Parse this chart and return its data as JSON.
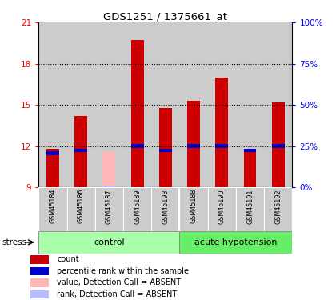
{
  "title": "GDS1251 / 1375661_at",
  "samples": [
    "GSM45184",
    "GSM45186",
    "GSM45187",
    "GSM45189",
    "GSM45193",
    "GSM45188",
    "GSM45190",
    "GSM45191",
    "GSM45192"
  ],
  "red_values": [
    11.8,
    14.2,
    9.0,
    19.7,
    14.8,
    15.3,
    17.0,
    11.6,
    15.2
  ],
  "blue_values": [
    11.5,
    11.7,
    9.0,
    12.0,
    11.7,
    12.0,
    12.0,
    11.7,
    12.0
  ],
  "absent_idx": 2,
  "pink_value": 11.6,
  "lavender_value": 11.5,
  "ymin": 9,
  "ymax": 21,
  "yticks": [
    9,
    12,
    15,
    18,
    21
  ],
  "right_ytick_labels": [
    "0%",
    "25%",
    "50%",
    "75%",
    "100%"
  ],
  "right_ytick_vals": [
    9,
    12,
    15,
    18,
    21
  ],
  "dotted_lines": [
    12,
    15,
    18
  ],
  "n_control": 5,
  "n_acute": 4,
  "group_label_control": "control",
  "group_label_acute": "acute hypotension",
  "stress_label": "stress",
  "legend_items": [
    {
      "color": "#cc0000",
      "label": "count"
    },
    {
      "color": "#0000cc",
      "label": "percentile rank within the sample"
    },
    {
      "color": "#ffb6b6",
      "label": "value, Detection Call = ABSENT"
    },
    {
      "color": "#bbbbff",
      "label": "rank, Detection Call = ABSENT"
    }
  ],
  "bar_color_red": "#cc0000",
  "bar_color_blue": "#0000cc",
  "bar_color_pink": "#ffb6b6",
  "bar_color_lavender": "#bbbbff",
  "bg_color_samples": "#cccccc",
  "group_bg_color": "#aaffaa",
  "group_bg_color2": "#66ee66"
}
